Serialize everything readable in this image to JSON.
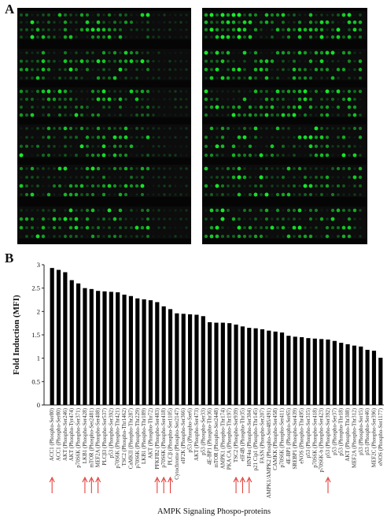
{
  "panels": {
    "a": "A",
    "b": "B"
  },
  "chart_data": {
    "type": "bar",
    "ylabel": "Fold Induction (MFI)",
    "xlabel": "AMPK Signaling Phospo-proteins",
    "ylim": [
      0,
      3
    ],
    "yticks": [
      0,
      0.5,
      1,
      1.5,
      2,
      2.5,
      3
    ],
    "categories": [
      "ACC1 (Phospho-Ser80)",
      "ACC1 (Phospho-Ser80)",
      "AKT (Phospho-Ser246)",
      "AKT (Phospho-Tyr474)",
      "p70S6K (Phospho-Ser371)",
      "LKB1 (Phospho-Ser428)",
      "mTOR (Phospho-Ser2481)",
      "MEF2A (Phospho-Ser408)",
      "PLCβ3 (Phospho-Ser537)",
      "p53 (Phospho-Ser392)",
      "p70S6K (Phospho-Thr421)",
      "TSC2 (Phospho-Thr1462)",
      "CaMKII (Phospho-Thr287)",
      "p70S6K (Phospho-Thr229)",
      "LKB1 (Phospho-Thr189)",
      "AKT (Phospho-Thr72)",
      "PFKFB2 (Phospho-Ser483)",
      "p70S6K (Phospho-Ser418)",
      "PLCβ (Phospho-Ser1105)",
      "Cytochrome (Phospho-Ser2147)",
      "eIF2K (Phospho-Ser366)",
      "p53 (Phospho-Ser6)",
      "AKT (Phospho-Ser473)",
      "p53 (Phospho-Ser33)",
      "4E-BP1 (Phospho-Thr36)",
      "mTOR (Phospho-Ser2448)",
      "AMPK1 (Phospho-Thr174)",
      "PKA CA (Phospho-Thr197)",
      "TSC2 (Phospho-Ser939)",
      "eIF4B (Phospho-Thr35)",
      "HNF4α (Phospho-Ser304)",
      "p21 Cip1 (Phospho-Thr145)",
      "FASN (Phospho-Ser207)",
      "AMPK1/AMPK2 (Phospho-Ser485/491)",
      "CAMKK (Phospho-Ser458)",
      "p70S6K (Phospho-Ser411)",
      "4E-BP1 (Phospho-Ser65)",
      "SREBP1 (Phospho-Ser439)",
      "eNOS (Phospho-Thr495)",
      "p53 (Phospho-Ser315)",
      "p70S6K (Phospho-Ser418)",
      "p70S6K-b (Phospho-Ser423)",
      "p53 (Phospho-Ser392)",
      "p53 (Phospho-Ser37)",
      "p53 (Phospho-Thr18)",
      "AKT (Phospho-Thr308)",
      "MEF2A (Phospho-Thr312)",
      "p53 (Phospho-Ser15)",
      "p53 (Phospho-Ser46)",
      "MEF2C (Phospho-Ser396)",
      "eNOS (Phospho-Ser1177)"
    ],
    "values": [
      2.93,
      2.89,
      2.84,
      2.67,
      2.6,
      2.5,
      2.48,
      2.44,
      2.43,
      2.42,
      2.41,
      2.36,
      2.33,
      2.28,
      2.26,
      2.24,
      2.2,
      2.11,
      2.05,
      1.96,
      1.95,
      1.94,
      1.93,
      1.9,
      1.77,
      1.76,
      1.76,
      1.75,
      1.72,
      1.68,
      1.65,
      1.64,
      1.62,
      1.59,
      1.57,
      1.55,
      1.48,
      1.46,
      1.45,
      1.43,
      1.42,
      1.41,
      1.4,
      1.37,
      1.33,
      1.3,
      1.27,
      1.25,
      1.18,
      1.16,
      1.01
    ],
    "arrows_at": [
      0,
      5,
      6,
      7,
      16,
      17,
      18,
      28,
      29,
      30,
      42
    ]
  }
}
